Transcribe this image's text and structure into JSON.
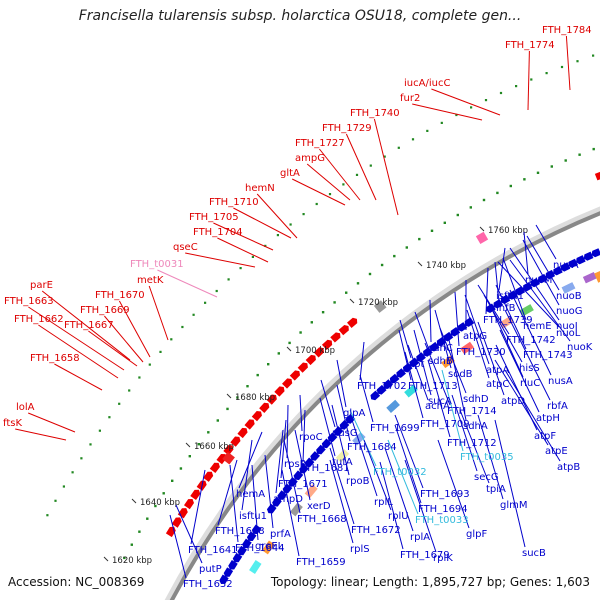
{
  "title": "Francisella tularensis subsp. holarctica OSU18, complete gen...",
  "footer": {
    "accession": "Accession: NC_008369",
    "summary": "Topology: linear; Length: 1,895,727 bp; Genes: 1,603"
  },
  "colors": {
    "red_label": "#dd0000",
    "blue_label": "#0000cc",
    "cyan_label": "#33bbdd",
    "pink_label": "#ee88bb",
    "backbone": "#888888",
    "forward_gene": "#ee0000",
    "reverse_gene": "#0000cc",
    "tick_dot": "#228822"
  },
  "ticks": [
    "1620 kbp",
    "1640 kbp",
    "1660 kbp",
    "1680 kbp",
    "1700 kbp",
    "1720 kbp",
    "1740 kbp",
    "1760 kbp"
  ],
  "outer_labels": [
    {
      "text": "FTH_1784",
      "color": "red"
    },
    {
      "text": "FTH_1774",
      "color": "red"
    },
    {
      "text": "iucA/iucC",
      "color": "red"
    },
    {
      "text": "fur2",
      "color": "red"
    },
    {
      "text": "FTH_1740",
      "color": "red"
    },
    {
      "text": "FTH_1729",
      "color": "red"
    },
    {
      "text": "FTH_1727",
      "color": "red"
    },
    {
      "text": "ampG",
      "color": "red"
    },
    {
      "text": "gltA",
      "color": "red"
    },
    {
      "text": "hemN",
      "color": "red"
    },
    {
      "text": "FTH_1710",
      "color": "red"
    },
    {
      "text": "FTH_1705",
      "color": "red"
    },
    {
      "text": "FTH_1704",
      "color": "red"
    },
    {
      "text": "qseC",
      "color": "red"
    },
    {
      "text": "FTH_t0031",
      "color": "pink"
    },
    {
      "text": "metK",
      "color": "red"
    },
    {
      "text": "parE",
      "color": "red"
    },
    {
      "text": "FTH_1670",
      "color": "red"
    },
    {
      "text": "FTH_1663",
      "color": "red"
    },
    {
      "text": "FTH_1669",
      "color": "red"
    },
    {
      "text": "FTH_1662",
      "color": "red"
    },
    {
      "text": "FTH_1667",
      "color": "red"
    },
    {
      "text": "FTH_1658",
      "color": "red"
    },
    {
      "text": "lolA",
      "color": "red"
    },
    {
      "text": "ftsK",
      "color": "red"
    }
  ],
  "inner_labels": [
    {
      "text": "nuoA",
      "color": "blue"
    },
    {
      "text": "nuoM",
      "color": "blue"
    },
    {
      "text": "nuoB",
      "color": "blue"
    },
    {
      "text": "isftu1",
      "color": "blue"
    },
    {
      "text": "nuoG",
      "color": "blue"
    },
    {
      "text": "infB",
      "color": "blue"
    },
    {
      "text": "nuoI",
      "color": "blue"
    },
    {
      "text": "FTH_1739",
      "color": "blue"
    },
    {
      "text": "hemE",
      "color": "blue"
    },
    {
      "text": "nuoL",
      "color": "blue"
    },
    {
      "text": "atpG",
      "color": "blue"
    },
    {
      "text": "FTH_1742",
      "color": "blue"
    },
    {
      "text": "sdhC",
      "color": "blue"
    },
    {
      "text": "FTH_1730",
      "color": "blue"
    },
    {
      "text": "FTH_1743",
      "color": "blue"
    },
    {
      "text": "nuoK",
      "color": "blue"
    },
    {
      "text": "sdhB",
      "color": "blue"
    },
    {
      "text": "apt",
      "color": "blue"
    },
    {
      "text": "sodB",
      "color": "blue"
    },
    {
      "text": "atpA",
      "color": "blue"
    },
    {
      "text": "hisS",
      "color": "blue"
    },
    {
      "text": "nusA",
      "color": "blue"
    },
    {
      "text": "FTH_1702",
      "color": "blue"
    },
    {
      "text": "FTH_1713",
      "color": "blue"
    },
    {
      "text": "sucA",
      "color": "blue"
    },
    {
      "text": "atpC",
      "color": "blue"
    },
    {
      "text": "rluC",
      "color": "blue"
    },
    {
      "text": "sdhD",
      "color": "blue"
    },
    {
      "text": "atpD",
      "color": "blue"
    },
    {
      "text": "rbfA",
      "color": "blue"
    },
    {
      "text": "acnA",
      "color": "blue"
    },
    {
      "text": "glpA",
      "color": "blue"
    },
    {
      "text": "FTH_1714",
      "color": "blue"
    },
    {
      "text": "sdhA",
      "color": "blue"
    },
    {
      "text": "atpH",
      "color": "blue"
    },
    {
      "text": "FTH_1699",
      "color": "blue"
    },
    {
      "text": "FTH_1709",
      "color": "blue"
    },
    {
      "text": "atpF",
      "color": "blue"
    },
    {
      "text": "nusG",
      "color": "blue"
    },
    {
      "text": "FTH_1684",
      "color": "blue"
    },
    {
      "text": "FTH_1712",
      "color": "blue"
    },
    {
      "text": "rpoC",
      "color": "blue"
    },
    {
      "text": "atpE",
      "color": "blue"
    },
    {
      "text": "tufA",
      "color": "blue"
    },
    {
      "text": "FTH_t0035",
      "color": "cyan"
    },
    {
      "text": "rpsP",
      "color": "blue"
    },
    {
      "text": "FTH_1681",
      "color": "blue"
    },
    {
      "text": "rpoB",
      "color": "blue"
    },
    {
      "text": "FTH_t0032",
      "color": "cyan"
    },
    {
      "text": "atpB",
      "color": "blue"
    },
    {
      "text": "FTH_1671",
      "color": "blue"
    },
    {
      "text": "secG",
      "color": "blue"
    },
    {
      "text": "FTH_1693",
      "color": "blue"
    },
    {
      "text": "hemA",
      "color": "blue"
    },
    {
      "text": "ampD",
      "color": "blue"
    },
    {
      "text": "tpiA",
      "color": "blue"
    },
    {
      "text": "rplL",
      "color": "blue"
    },
    {
      "text": "isftu1",
      "color": "blue"
    },
    {
      "text": "xerD",
      "color": "blue"
    },
    {
      "text": "FTH_1694",
      "color": "blue"
    },
    {
      "text": "glmM",
      "color": "blue"
    },
    {
      "text": "FTH_1648",
      "color": "blue"
    },
    {
      "text": "FTH_1668",
      "color": "blue"
    },
    {
      "text": "rplU",
      "color": "blue"
    },
    {
      "text": "FTH_t0033",
      "color": "cyan"
    },
    {
      "text": "prfA",
      "color": "blue"
    },
    {
      "text": "glpF",
      "color": "blue"
    },
    {
      "text": "FTH_1644",
      "color": "blue"
    },
    {
      "text": "FTH_1672",
      "color": "blue"
    },
    {
      "text": "sucB",
      "color": "blue"
    },
    {
      "text": "rplA",
      "color": "blue"
    },
    {
      "text": "FTH_1641",
      "color": "blue"
    },
    {
      "text": "groEL",
      "color": "blue"
    },
    {
      "text": "rplS",
      "color": "blue"
    },
    {
      "text": "FTH_1679",
      "color": "blue"
    },
    {
      "text": "rplK",
      "color": "blue"
    },
    {
      "text": "FTH_1659",
      "color": "blue"
    },
    {
      "text": "putP",
      "color": "blue"
    },
    {
      "text": "FTH_1632",
      "color": "blue"
    }
  ]
}
